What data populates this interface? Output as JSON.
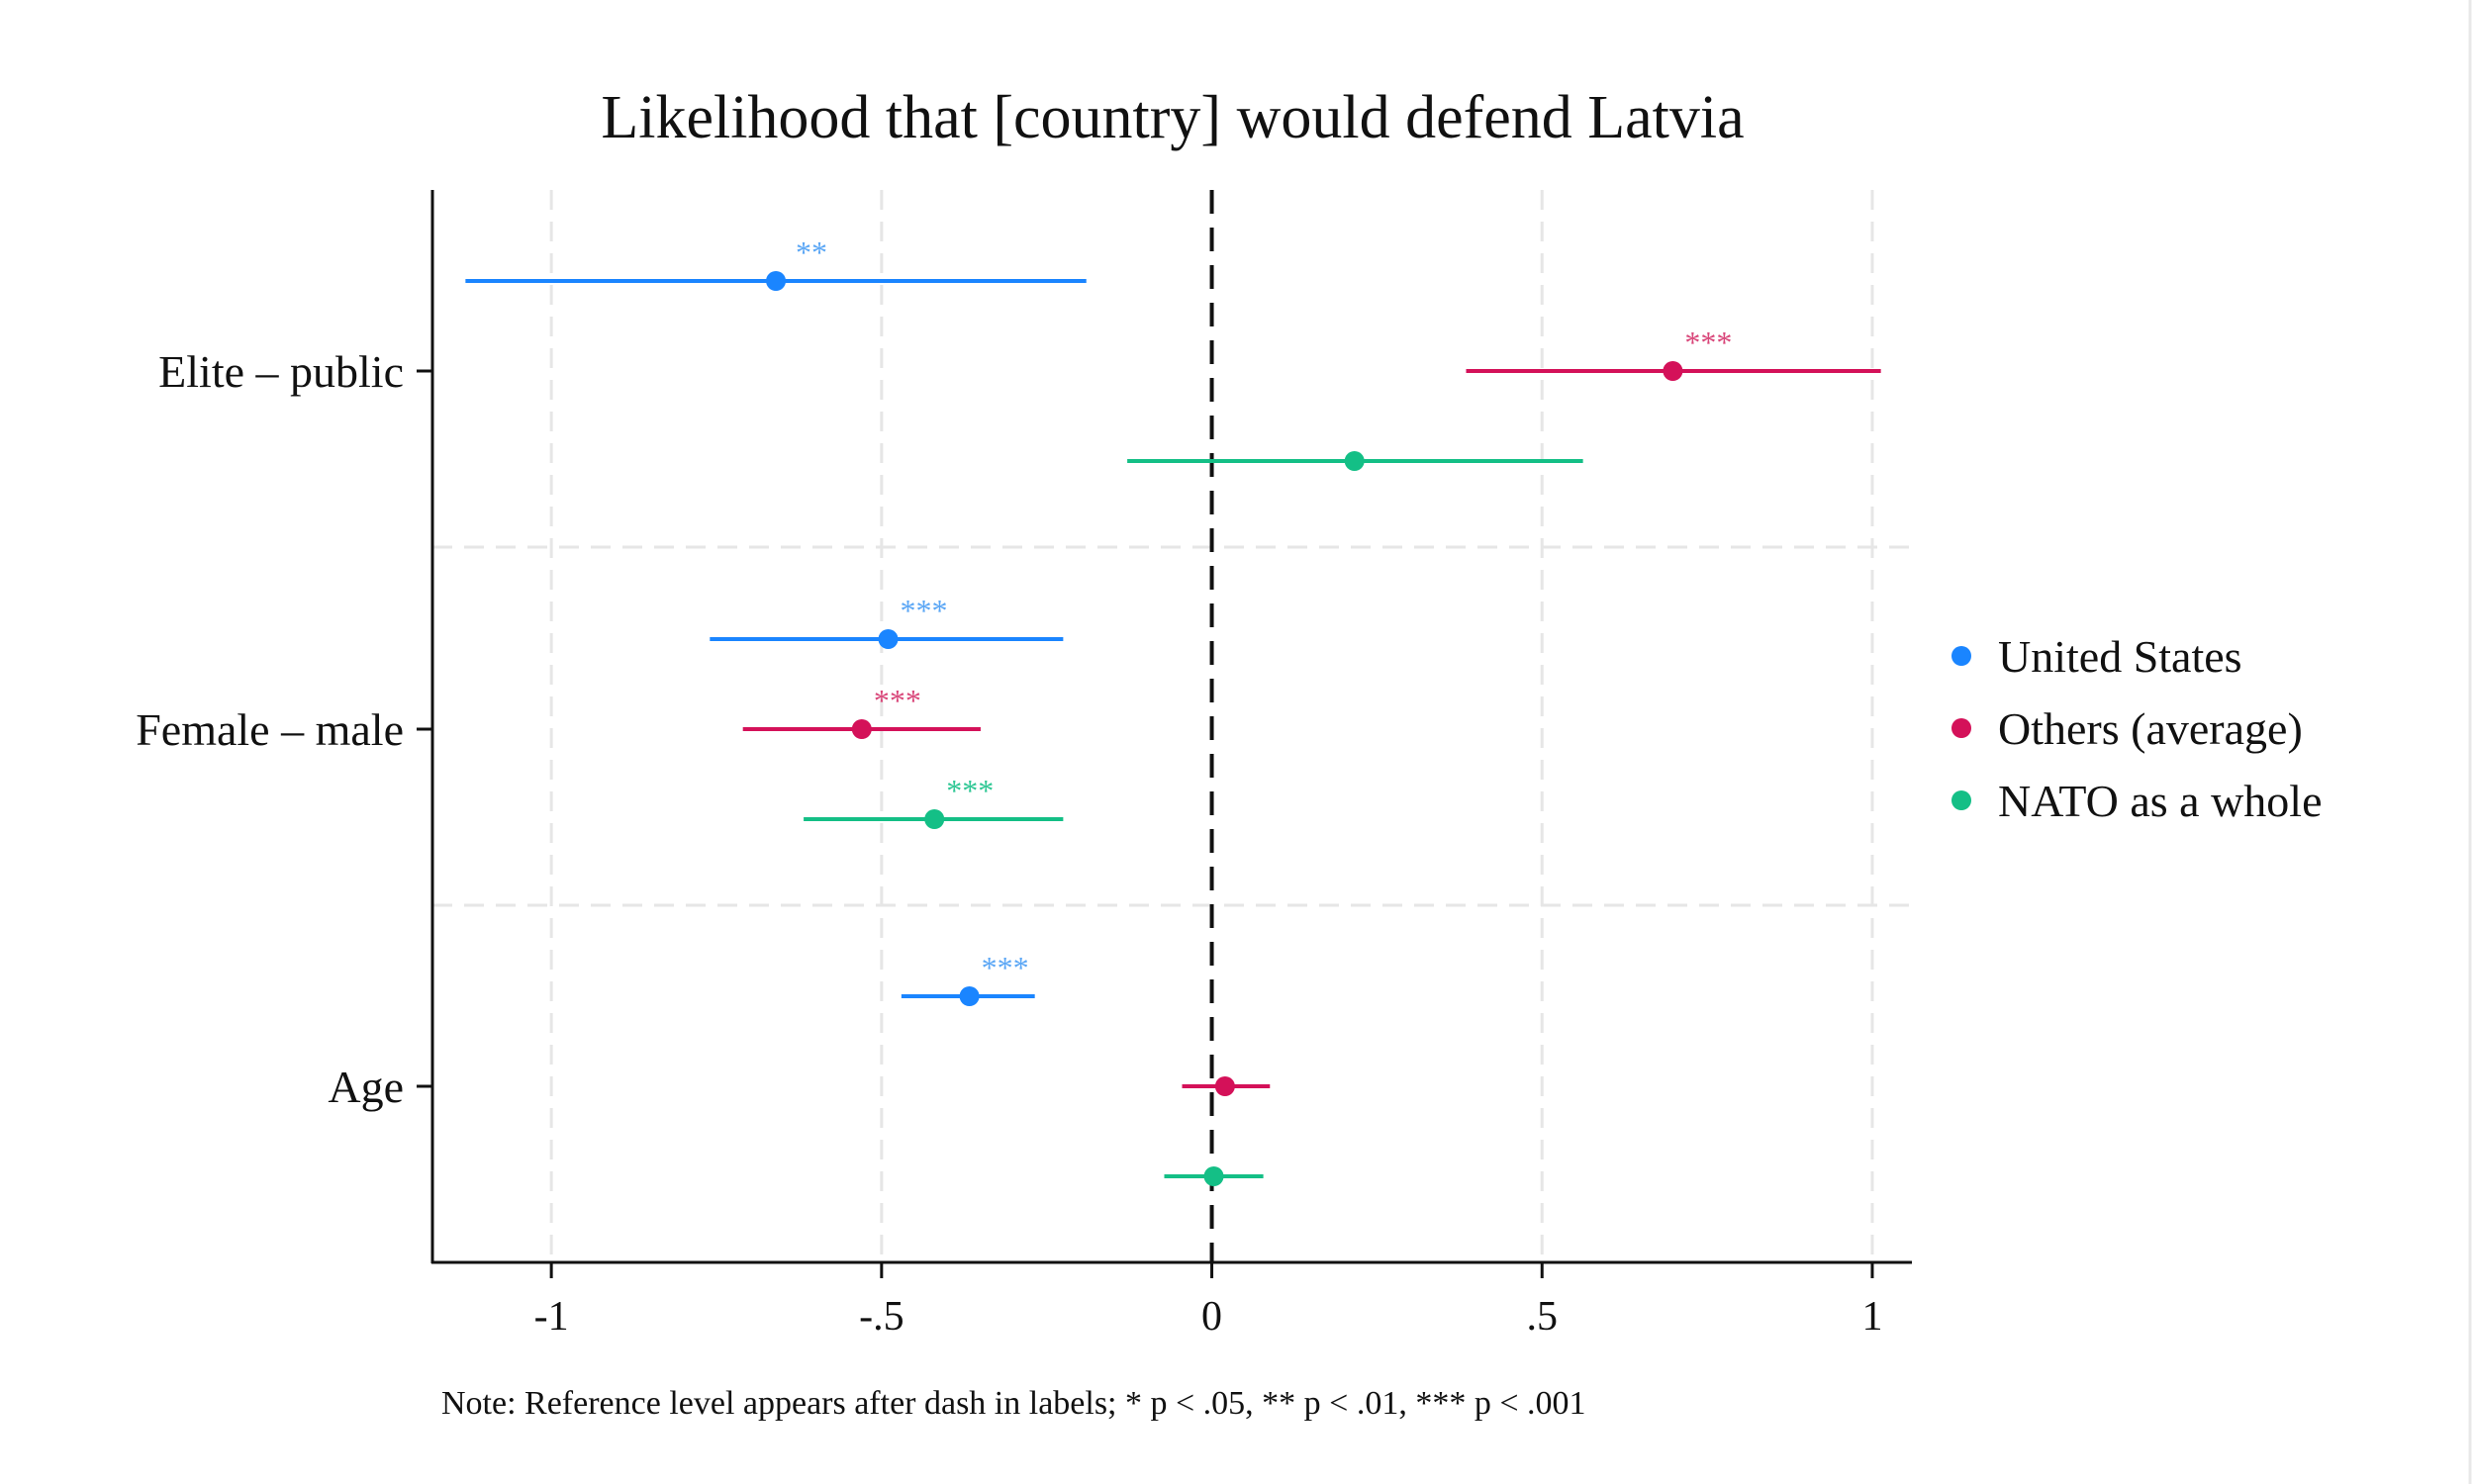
{
  "chart_data": {
    "type": "coefficient_plot",
    "title": "Likelihood that [country] would defend Latvia",
    "xlim": [
      -1.18,
      1.06
    ],
    "xticks": [
      {
        "value": -1,
        "label": "-1"
      },
      {
        "value": -0.5,
        "label": "-.5"
      },
      {
        "value": 0,
        "label": "0"
      },
      {
        "value": 0.5,
        "label": ".5"
      },
      {
        "value": 1,
        "label": "1"
      }
    ],
    "categories": [
      "Elite – public",
      "Female – male",
      "Age"
    ],
    "reference_line": 0,
    "grid": true,
    "series": [
      {
        "name": "United States",
        "color": "#1a85ff",
        "sig_color": "#5aa6f5",
        "points": [
          {
            "category": "Elite – public",
            "estimate": -0.66,
            "ci": [
              -1.13,
              -0.19
            ],
            "sig": "**"
          },
          {
            "category": "Female – male",
            "estimate": -0.49,
            "ci": [
              -0.76,
              -0.225
            ],
            "sig": "***"
          },
          {
            "category": "Age",
            "estimate": -0.367,
            "ci": [
              -0.47,
              -0.268
            ],
            "sig": "***"
          }
        ]
      },
      {
        "name": "Others (average)",
        "color": "#d41159",
        "sig_color": "#d9477a",
        "points": [
          {
            "category": "Elite – public",
            "estimate": 0.698,
            "ci": [
              0.385,
              1.013
            ],
            "sig": "***"
          },
          {
            "category": "Female – male",
            "estimate": -0.53,
            "ci": [
              -0.71,
              -0.35
            ],
            "sig": "***"
          },
          {
            "category": "Age",
            "estimate": 0.02,
            "ci": [
              -0.045,
              0.088
            ],
            "sig": ""
          }
        ]
      },
      {
        "name": "NATO as a whole",
        "color": "#14bf86",
        "sig_color": "#2ec794",
        "points": [
          {
            "category": "Elite – public",
            "estimate": 0.216,
            "ci": [
              -0.128,
              0.562
            ],
            "sig": ""
          },
          {
            "category": "Female – male",
            "estimate": -0.42,
            "ci": [
              -0.618,
              -0.225
            ],
            "sig": "***"
          },
          {
            "category": "Age",
            "estimate": 0.003,
            "ci": [
              -0.072,
              0.078
            ],
            "sig": ""
          }
        ]
      }
    ],
    "legend": {
      "position": "right"
    },
    "note": "Note: Reference level appears after dash in labels; * p < .05, ** p < .01, *** p < .001"
  }
}
